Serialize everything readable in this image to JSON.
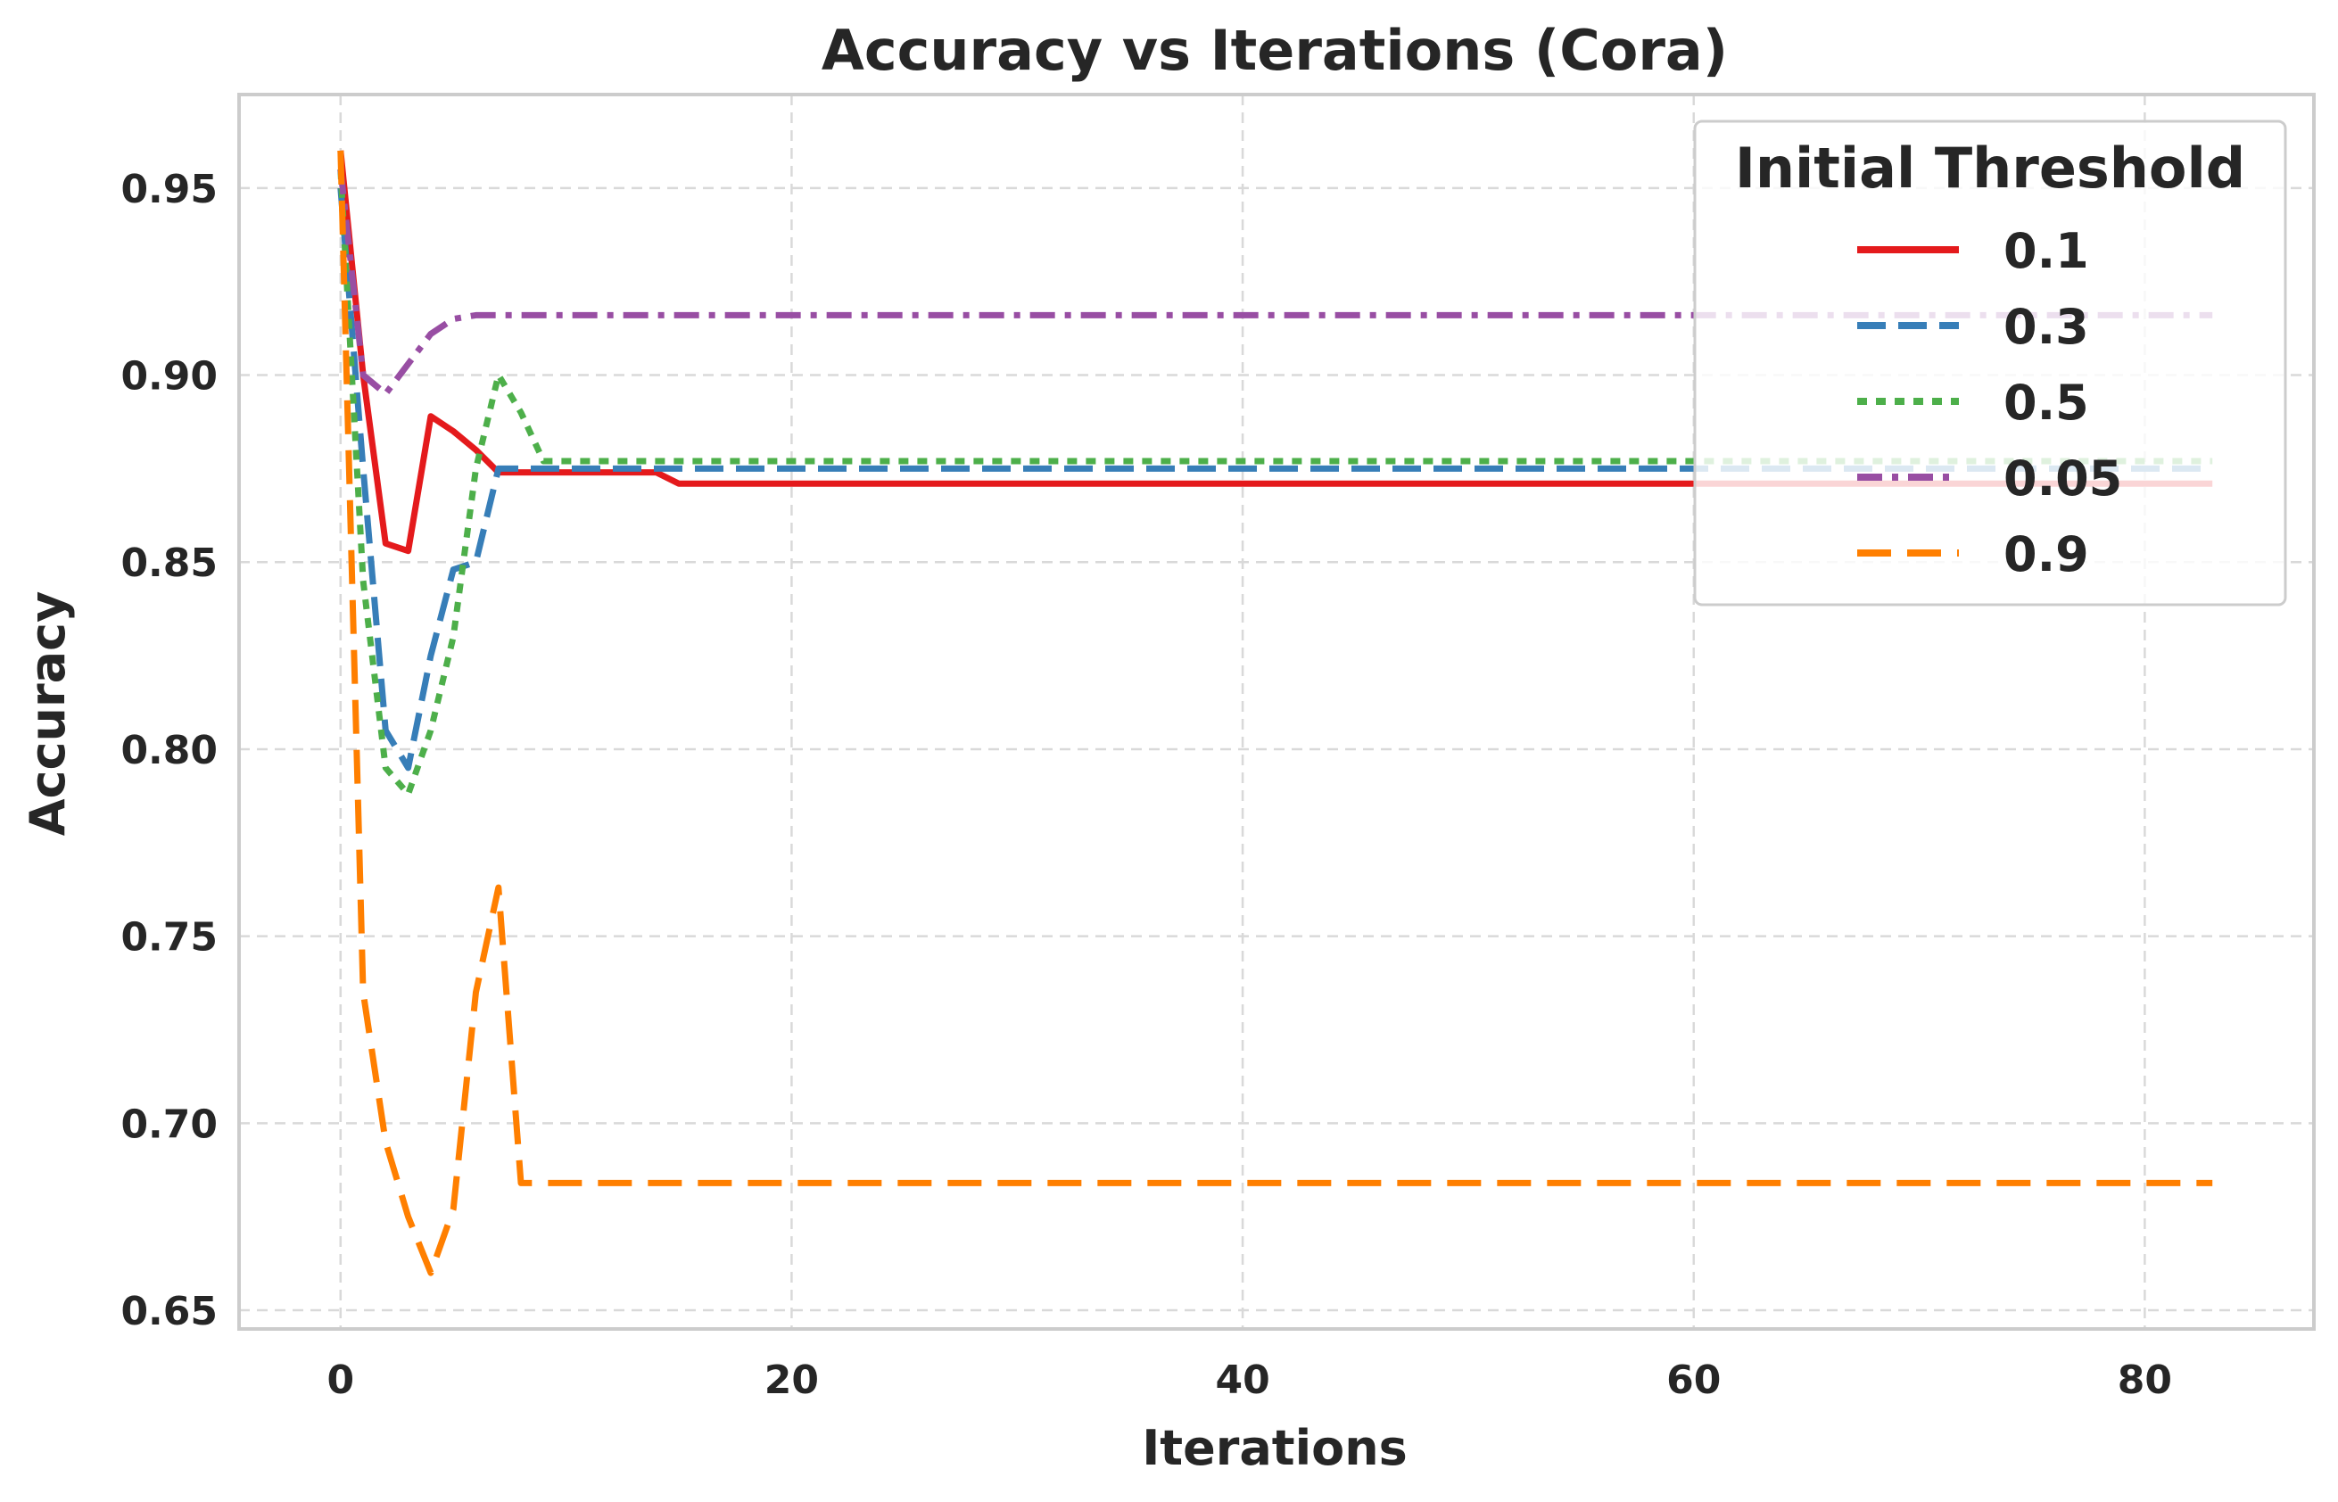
{
  "chart_data": {
    "type": "line",
    "title": "Accuracy vs Iterations (Cora)",
    "xlabel": "Iterations",
    "ylabel": "Accuracy",
    "xlim": [
      -4.5,
      87.5
    ],
    "ylim": [
      0.645,
      0.975
    ],
    "xticks": [
      0,
      20,
      40,
      60,
      80
    ],
    "yticks": [
      0.65,
      0.7,
      0.75,
      0.8,
      0.85,
      0.9,
      0.95
    ],
    "ytick_labels": [
      "0.65",
      "0.70",
      "0.75",
      "0.80",
      "0.85",
      "0.90",
      "0.95"
    ],
    "grid": true,
    "legend": {
      "title": "Initial Threshold",
      "placement": "top-right"
    },
    "series": [
      {
        "name": "0.1",
        "color": "#e41a1c",
        "dash": "solid",
        "x": [
          0,
          1,
          2,
          3,
          4,
          5,
          6,
          7,
          8,
          14,
          15,
          83
        ],
        "y": [
          0.96,
          0.9,
          0.855,
          0.853,
          0.889,
          0.885,
          0.88,
          0.874,
          0.874,
          0.874,
          0.871,
          0.871
        ]
      },
      {
        "name": "0.3",
        "color": "#377eb8",
        "dash": "dashed",
        "x": [
          0,
          1,
          2,
          3,
          4,
          5,
          6,
          7,
          8,
          83
        ],
        "y": [
          0.95,
          0.875,
          0.805,
          0.795,
          0.825,
          0.848,
          0.85,
          0.875,
          0.875,
          0.875
        ]
      },
      {
        "name": "0.5",
        "color": "#4daf4a",
        "dash": "dotted",
        "x": [
          0,
          1,
          2,
          3,
          4,
          5,
          6,
          7,
          8,
          9,
          83
        ],
        "y": [
          0.955,
          0.845,
          0.795,
          0.788,
          0.805,
          0.83,
          0.875,
          0.9,
          0.89,
          0.877,
          0.877
        ]
      },
      {
        "name": "0.05",
        "color": "#984ea3",
        "dash": "dashdot",
        "x": [
          0,
          1,
          2,
          3,
          4,
          5,
          6,
          83
        ],
        "y": [
          0.955,
          0.9,
          0.895,
          0.903,
          0.911,
          0.915,
          0.916,
          0.916
        ]
      },
      {
        "name": "0.9",
        "color": "#ff7f00",
        "dash": "longdash",
        "x": [
          0,
          1,
          2,
          3,
          4,
          5,
          6,
          7,
          8,
          83
        ],
        "y": [
          0.96,
          0.735,
          0.695,
          0.675,
          0.66,
          0.677,
          0.735,
          0.763,
          0.684,
          0.684
        ]
      }
    ]
  }
}
